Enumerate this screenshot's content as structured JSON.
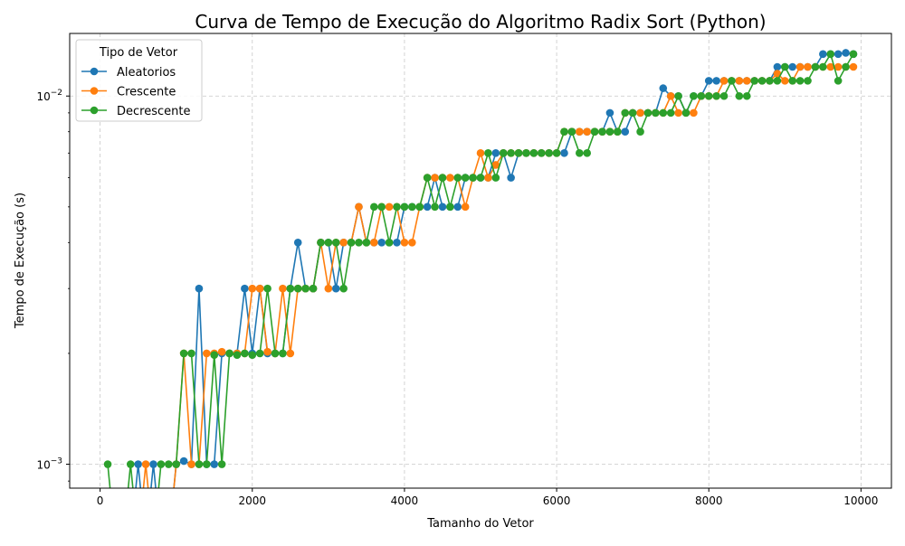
{
  "chart_data": {
    "type": "line",
    "title": "Curva de Tempo de Execução do Algoritmo Radix Sort (Python)",
    "xlabel": "Tamanho do Vetor",
    "ylabel": "Tempo de Execução (s)",
    "xlim": [
      -400,
      10400
    ],
    "ylim_log10": [
      -3.065,
      -1.83
    ],
    "y_scale": "log",
    "grid": true,
    "legend_title": "Tipo de Vetor",
    "legend_position": "upper left",
    "x_ticks": [
      0,
      2000,
      4000,
      6000,
      8000,
      10000
    ],
    "x_tick_labels": [
      "0",
      "2000",
      "4000",
      "6000",
      "8000",
      "10000"
    ],
    "y_ticks": [
      0.001,
      0.01
    ],
    "y_tick_labels": [
      "10<sup>-3</sup>",
      "10<sup>-2</sup>"
    ],
    "y_major_ticks": [
      {
        "base": "10",
        "exp": "−3",
        "value": 0.001
      },
      {
        "base": "10",
        "exp": "−2",
        "value": 0.01
      }
    ],
    "x": [
      100,
      200,
      300,
      400,
      500,
      600,
      700,
      800,
      900,
      1000,
      1100,
      1200,
      1300,
      1400,
      1500,
      1600,
      1700,
      1800,
      1900,
      2000,
      2100,
      2200,
      2300,
      2400,
      2500,
      2600,
      2700,
      2800,
      2900,
      3000,
      3100,
      3200,
      3300,
      3400,
      3500,
      3600,
      3700,
      3800,
      3900,
      4000,
      4100,
      4200,
      4300,
      4400,
      4500,
      4600,
      4700,
      4800,
      4900,
      5000,
      5100,
      5200,
      5300,
      5400,
      5500,
      5600,
      5700,
      5800,
      5900,
      6000,
      6100,
      6200,
      6300,
      6400,
      6500,
      6600,
      6700,
      6800,
      6900,
      7000,
      7100,
      7200,
      7300,
      7400,
      7500,
      7600,
      7700,
      7800,
      7900,
      8000,
      8100,
      8200,
      8300,
      8400,
      8500,
      8600,
      8700,
      8800,
      8900,
      9000,
      9100,
      9200,
      9300,
      9400,
      9500,
      9600,
      9700,
      9800,
      9900
    ],
    "series": [
      {
        "name": "Aleatorios",
        "color": "#1f77b4",
        "values": [
          0,
          0,
          0,
          0,
          0.001,
          0,
          0.001,
          0,
          0,
          0.001,
          0.00102,
          0.001,
          0.003,
          0.001,
          0.001,
          0.002,
          0.002,
          0.002,
          0.003,
          0.002,
          0.003,
          0.002,
          0.002,
          0.002,
          0.003,
          0.004,
          0.003,
          0.003,
          0.004,
          0.004,
          0.003,
          0.004,
          0.004,
          0.005,
          0.004,
          0.004,
          0.004,
          0.004,
          0.004,
          0.005,
          0.005,
          0.005,
          0.005,
          0.006,
          0.005,
          0.005,
          0.005,
          0.006,
          0.006,
          0.006,
          0.006,
          0.007,
          0.007,
          0.006,
          0.007,
          0.007,
          0.007,
          0.007,
          0.007,
          0.007,
          0.007,
          0.008,
          0.008,
          0.008,
          0.008,
          0.008,
          0.009,
          0.008,
          0.008,
          0.009,
          0.009,
          0.009,
          0.009,
          0.0105,
          0.01,
          0.01,
          0.009,
          0.01,
          0.01,
          0.011,
          0.011,
          0.011,
          0.011,
          0.011,
          0.011,
          0.011,
          0.011,
          0.011,
          0.012,
          0.012,
          0.012,
          0.012,
          0.012,
          0.012,
          0.013,
          0.013,
          0.013,
          0.0131,
          0.013
        ]
      },
      {
        "name": "Crescente",
        "color": "#ff7f0e",
        "values": [
          0,
          0,
          0,
          0,
          0,
          0.001,
          0,
          0,
          0,
          0.001,
          0.002,
          0.001,
          0.001,
          0.002,
          0.002,
          0.00202,
          0.002,
          0.002,
          0.002,
          0.003,
          0.003,
          0.00202,
          0.002,
          0.003,
          0.002,
          0.003,
          0.003,
          0.003,
          0.004,
          0.003,
          0.004,
          0.004,
          0.004,
          0.005,
          0.004,
          0.004,
          0.005,
          0.005,
          0.005,
          0.004,
          0.004,
          0.005,
          0.006,
          0.006,
          0.006,
          0.006,
          0.006,
          0.005,
          0.006,
          0.007,
          0.006,
          0.0065,
          0.007,
          0.007,
          0.007,
          0.007,
          0.007,
          0.007,
          0.007,
          0.007,
          0.008,
          0.008,
          0.008,
          0.008,
          0.008,
          0.008,
          0.008,
          0.008,
          0.009,
          0.009,
          0.009,
          0.009,
          0.009,
          0.009,
          0.01,
          0.009,
          0.009,
          0.009,
          0.01,
          0.01,
          0.01,
          0.011,
          0.011,
          0.011,
          0.011,
          0.011,
          0.011,
          0.011,
          0.0115,
          0.011,
          0.011,
          0.012,
          0.012,
          0.012,
          0.012,
          0.012,
          0.012,
          0.012,
          0.012
        ]
      },
      {
        "name": "Decrescente",
        "color": "#2ca02c",
        "values": [
          0.001,
          0,
          0,
          0.001,
          0,
          0,
          0,
          0.001,
          0.001,
          0.001,
          0.002,
          0.002,
          0.001,
          0.001,
          0.00198,
          0.001,
          0.002,
          0.00198,
          0.002,
          0.00198,
          0.002,
          0.003,
          0.002,
          0.002,
          0.003,
          0.003,
          0.003,
          0.003,
          0.004,
          0.004,
          0.004,
          0.003,
          0.004,
          0.004,
          0.004,
          0.005,
          0.005,
          0.004,
          0.005,
          0.005,
          0.005,
          0.005,
          0.006,
          0.005,
          0.006,
          0.005,
          0.006,
          0.006,
          0.006,
          0.006,
          0.007,
          0.006,
          0.007,
          0.007,
          0.007,
          0.007,
          0.007,
          0.007,
          0.007,
          0.007,
          0.008,
          0.008,
          0.007,
          0.007,
          0.008,
          0.008,
          0.008,
          0.008,
          0.009,
          0.009,
          0.008,
          0.009,
          0.009,
          0.009,
          0.009,
          0.01,
          0.009,
          0.01,
          0.01,
          0.01,
          0.01,
          0.01,
          0.011,
          0.01,
          0.01,
          0.011,
          0.011,
          0.011,
          0.011,
          0.012,
          0.011,
          0.011,
          0.011,
          0.012,
          0.012,
          0.013,
          0.011,
          0.012,
          0.013
        ]
      }
    ]
  }
}
